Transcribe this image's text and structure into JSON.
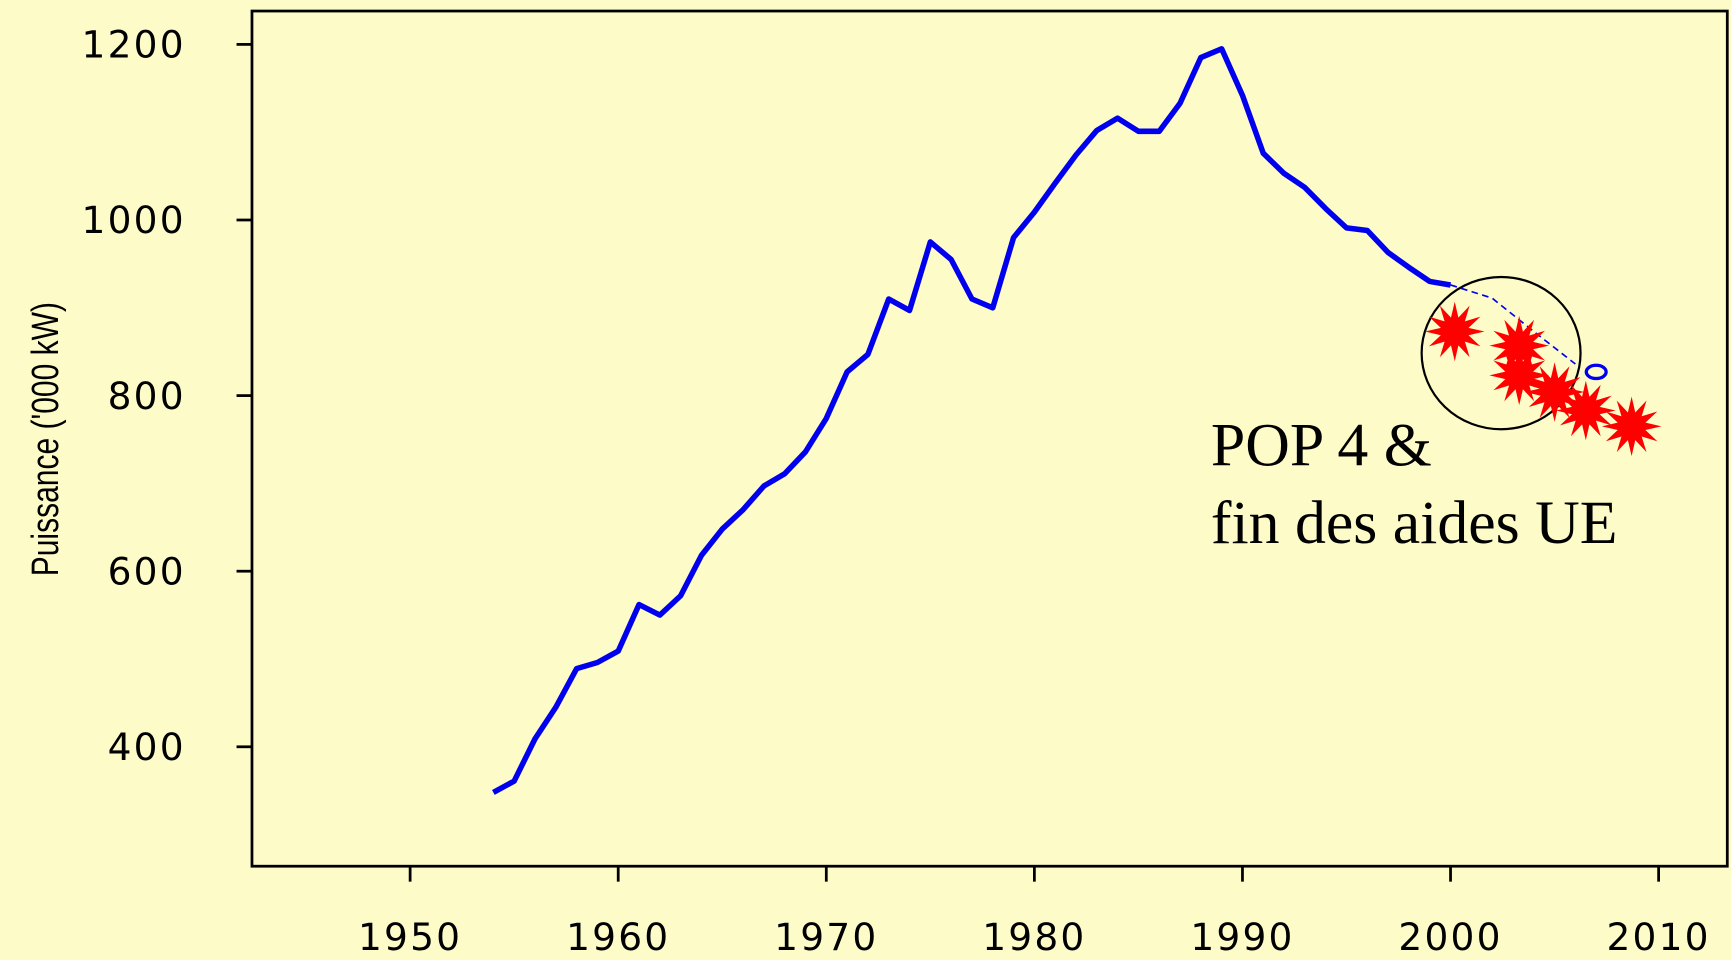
{
  "chart_data": {
    "type": "line",
    "y_label": "Puissance ('000 kW)",
    "annotation": [
      "POP 4 &",
      "fin des aides UE"
    ],
    "xlim": [
      1942.4,
      2013.3
    ],
    "ylim": [
      264,
      1238
    ],
    "xticks": [
      1950,
      1960,
      1970,
      1980,
      1990,
      2000,
      2010
    ],
    "yticks": [
      400,
      600,
      800,
      1000,
      1200
    ],
    "series": [
      {
        "color": "#0000ee",
        "style": "solid",
        "x": [
          1954,
          1955,
          1956,
          1957,
          1958,
          1959,
          1960,
          1961,
          1962,
          1963,
          1964,
          1965,
          1966,
          1967,
          1968,
          1969,
          1970,
          1971,
          1972,
          1973,
          1974,
          1975,
          1976,
          1977,
          1978,
          1979,
          1980,
          1981,
          1982,
          1983,
          1984,
          1985,
          1986,
          1987,
          1988,
          1989,
          1990,
          1991,
          1992,
          1993,
          1994,
          1995,
          1996,
          1997,
          1998,
          1999,
          2000
        ],
        "values": [
          348,
          361,
          409,
          445,
          489,
          496,
          509,
          562,
          550,
          572,
          618,
          648,
          670,
          697,
          711,
          736,
          774,
          827,
          847,
          910,
          897,
          975,
          955,
          910,
          900,
          980,
          1009,
          1042,
          1074,
          1102,
          1116,
          1101,
          1101,
          1133,
          1185,
          1195,
          1142,
          1076,
          1053,
          1037,
          1013,
          991,
          988,
          963,
          946,
          930,
          926
        ]
      },
      {
        "color": "#0000ee",
        "style": "dashed",
        "x": [
          2000,
          2002,
          2004,
          2006
        ],
        "values": [
          926,
          911,
          873,
          836
        ]
      },
      {
        "color": "#0000ee",
        "style": "circle",
        "x": [
          2007
        ],
        "values": [
          827
        ]
      },
      {
        "color": "#ff0000",
        "style": "star",
        "x": [
          2000.2,
          2003.3,
          2003.3,
          2005.0,
          2006.5,
          2008.7
        ],
        "values": [
          873,
          857,
          823,
          804,
          783,
          765
        ]
      }
    ]
  }
}
